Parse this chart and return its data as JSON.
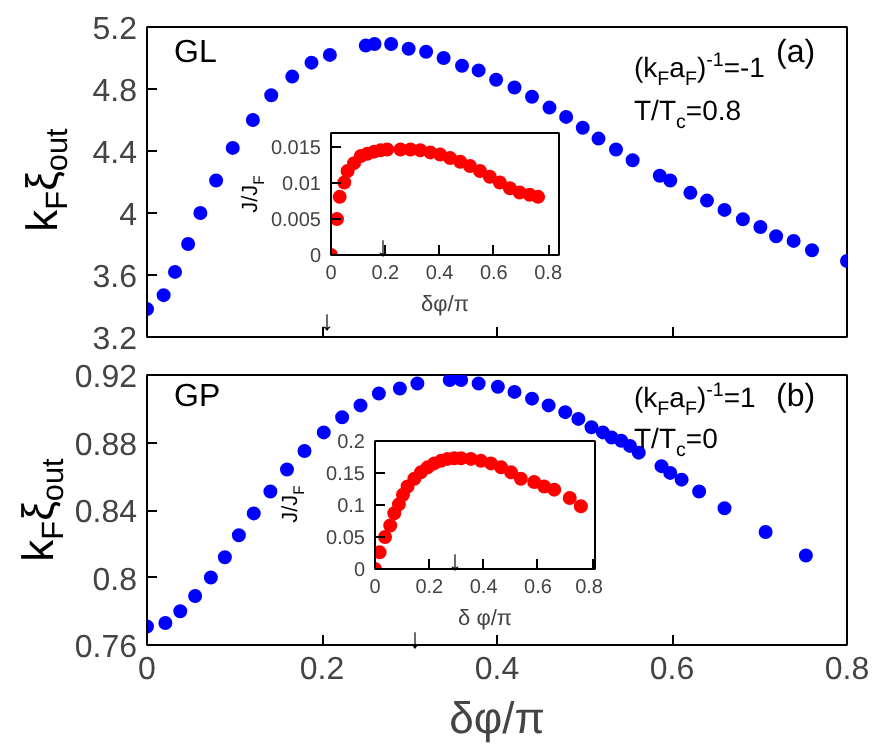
{
  "chart_data": [
    {
      "type": "scatter",
      "ylabel": "k$_{F}$ξ$_{out}$",
      "xlim": [
        0,
        0.8
      ],
      "ylim": [
        3.2,
        5.2
      ],
      "xticks": [
        0,
        0.2,
        0.4,
        0.6,
        0.8
      ],
      "yticks": [
        3.2,
        3.6,
        4,
        4.4,
        4.8,
        5.2
      ],
      "tick_labels": "y",
      "grid": false,
      "marker": "circle",
      "annotations": [
        "GL",
        "(a)",
        "(k$_{F}$a$_{F}$)$^{-1}$=-1",
        "T/T$_{c}$=0.8",
        "↓"
      ],
      "x": [
        0.0,
        0.019,
        0.032,
        0.047,
        0.061,
        0.079,
        0.098,
        0.121,
        0.142,
        0.166,
        0.188,
        0.209,
        0.25,
        0.26,
        0.279,
        0.299,
        0.319,
        0.339,
        0.36,
        0.379,
        0.399,
        0.42,
        0.44,
        0.46,
        0.479,
        0.498,
        0.516,
        0.536,
        0.555,
        0.586,
        0.598,
        0.621,
        0.64,
        0.66,
        0.681,
        0.701,
        0.719,
        0.739,
        0.76,
        0.8
      ],
      "series": [
        {
          "color": "#0000ff",
          "values": [
            3.38,
            3.47,
            3.62,
            3.8,
            4.0,
            4.21,
            4.42,
            4.6,
            4.76,
            4.88,
            4.97,
            5.02,
            5.08,
            5.09,
            5.09,
            5.06,
            5.04,
            5.0,
            4.95,
            4.92,
            4.86,
            4.81,
            4.75,
            4.68,
            4.62,
            4.55,
            4.48,
            4.41,
            4.34,
            4.24,
            4.21,
            4.13,
            4.08,
            4.02,
            3.96,
            3.91,
            3.85,
            3.82,
            3.76,
            3.69
          ]
        }
      ]
    },
    {
      "type": "scatter",
      "xlabel": "δφ/π",
      "ylabel": "J/J$_{F}$",
      "xlim": [
        0,
        0.84
      ],
      "ylim": [
        0,
        0.017
      ],
      "xticks": [
        0,
        0.2,
        0.4,
        0.6,
        0.8
      ],
      "yticks": [
        0,
        0.005,
        0.01,
        0.015
      ],
      "grid": false,
      "marker": "circle",
      "annotations": [
        "↓"
      ],
      "x": [
        0,
        0.022,
        0.032,
        0.049,
        0.061,
        0.085,
        0.11,
        0.134,
        0.159,
        0.183,
        0.207,
        0.256,
        0.293,
        0.329,
        0.366,
        0.402,
        0.439,
        0.476,
        0.512,
        0.549,
        0.585,
        0.622,
        0.659,
        0.695,
        0.732,
        0.763
      ],
      "series": [
        {
          "color": "#ff0000",
          "values": [
            0,
            0.005,
            0.0081,
            0.0101,
            0.0117,
            0.0128,
            0.0138,
            0.0141,
            0.0144,
            0.0146,
            0.0147,
            0.0147,
            0.0147,
            0.0146,
            0.0143,
            0.014,
            0.0135,
            0.013,
            0.0124,
            0.0117,
            0.0109,
            0.0101,
            0.0093,
            0.0087,
            0.0084,
            0.0081
          ]
        }
      ]
    },
    {
      "type": "scatter",
      "xlabel": "δφ/π",
      "ylabel": "k$_{F}$ξ$_{out}$",
      "xlim": [
        0,
        0.8
      ],
      "ylim": [
        0.76,
        0.92
      ],
      "xticks": [
        0,
        0.2,
        0.4,
        0.6,
        0.8
      ],
      "yticks": [
        0.76,
        0.8,
        0.84,
        0.88,
        0.92
      ],
      "grid": false,
      "marker": "circle",
      "annotations": [
        "GP",
        "(b)",
        "(k$_{F}$a$_{F}$)$^{-1}$=1",
        "T/T$_{c}$=0",
        "↓"
      ],
      "x": [
        0.0,
        0.021,
        0.038,
        0.055,
        0.073,
        0.089,
        0.105,
        0.122,
        0.141,
        0.16,
        0.18,
        0.202,
        0.223,
        0.244,
        0.265,
        0.289,
        0.309,
        0.346,
        0.359,
        0.379,
        0.401,
        0.42,
        0.44,
        0.459,
        0.478,
        0.493,
        0.508,
        0.521,
        0.531,
        0.542,
        0.552,
        0.562,
        0.588,
        0.598,
        0.611,
        0.631,
        0.66,
        0.707,
        0.753
      ],
      "series": [
        {
          "color": "#0000ff",
          "values": [
            0.771,
            0.773,
            0.78,
            0.789,
            0.8,
            0.812,
            0.825,
            0.838,
            0.851,
            0.864,
            0.875,
            0.886,
            0.895,
            0.902,
            0.909,
            0.912,
            0.915,
            0.917,
            0.917,
            0.915,
            0.913,
            0.91,
            0.906,
            0.902,
            0.898,
            0.894,
            0.889,
            0.886,
            0.883,
            0.881,
            0.878,
            0.874,
            0.866,
            0.862,
            0.858,
            0.851,
            0.841,
            0.827,
            0.813
          ]
        }
      ]
    },
    {
      "type": "scatter",
      "xlabel": "δ φ/π",
      "ylabel": "J/J$_{F}$",
      "xlim": [
        0,
        0.81
      ],
      "ylim": [
        0,
        0.2
      ],
      "xticks": [
        0,
        0.2,
        0.4,
        0.6,
        0.8
      ],
      "yticks": [
        0,
        0.05,
        0.1,
        0.15,
        0.2
      ],
      "grid": false,
      "marker": "circle",
      "annotations": [
        "↓"
      ],
      "x": [
        0,
        0.017,
        0.037,
        0.056,
        0.071,
        0.088,
        0.103,
        0.12,
        0.145,
        0.169,
        0.194,
        0.218,
        0.243,
        0.267,
        0.292,
        0.317,
        0.353,
        0.39,
        0.427,
        0.464,
        0.501,
        0.537,
        0.586,
        0.623,
        0.66,
        0.717,
        0.758
      ],
      "series": [
        {
          "color": "#ff0000",
          "values": [
            0,
            0.026,
            0.05,
            0.068,
            0.087,
            0.101,
            0.116,
            0.129,
            0.141,
            0.151,
            0.159,
            0.165,
            0.169,
            0.172,
            0.173,
            0.173,
            0.172,
            0.169,
            0.165,
            0.159,
            0.151,
            0.141,
            0.136,
            0.129,
            0.124,
            0.111,
            0.098
          ]
        }
      ]
    }
  ]
}
